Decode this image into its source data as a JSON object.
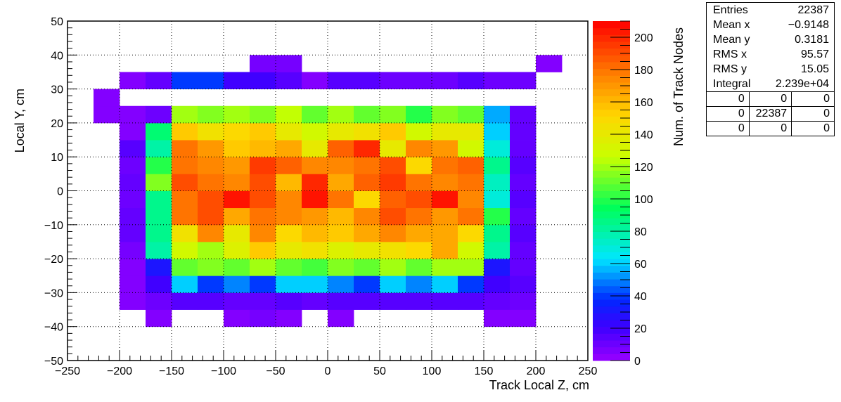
{
  "chart_data": {
    "type": "heatmap",
    "xlabel": "Track Local Z, cm",
    "ylabel": "Local Y, cm",
    "zlabel": "Num. of Track Nodes",
    "xlim": [
      -250,
      250
    ],
    "ylim": [
      -50,
      50
    ],
    "zlim": [
      0,
      210
    ],
    "x_ticks": [
      -250,
      -200,
      -150,
      -100,
      -50,
      0,
      50,
      100,
      150,
      200,
      250
    ],
    "y_ticks": [
      -50,
      -40,
      -30,
      -20,
      -10,
      0,
      10,
      20,
      30,
      40,
      50
    ],
    "z_ticks": [
      0,
      20,
      40,
      60,
      80,
      100,
      120,
      140,
      160,
      180,
      200
    ],
    "grid": true,
    "colormap": "rainbow",
    "x_bins": [
      -250,
      -225,
      -200,
      -175,
      -150,
      -125,
      -100,
      -75,
      -50,
      -25,
      0,
      25,
      50,
      75,
      100,
      125,
      150,
      175,
      200,
      225,
      250
    ],
    "y_bins": [
      -50,
      -45,
      -40,
      -35,
      -30,
      -25,
      -20,
      -15,
      -10,
      -5,
      0,
      5,
      10,
      15,
      20,
      25,
      30,
      35,
      40,
      45,
      50
    ],
    "values": [
      [
        0,
        0,
        0,
        0,
        0,
        0,
        0,
        0,
        0,
        0,
        0,
        0,
        0,
        0,
        0,
        0,
        0,
        0,
        0,
        0
      ],
      [
        0,
        0,
        0,
        0,
        0,
        0,
        0,
        0,
        0,
        0,
        0,
        0,
        0,
        0,
        0,
        0,
        0,
        0,
        0,
        0
      ],
      [
        0,
        0,
        0,
        5,
        0,
        0,
        5,
        8,
        5,
        0,
        5,
        0,
        0,
        0,
        0,
        0,
        5,
        5,
        0,
        0
      ],
      [
        0,
        0,
        5,
        10,
        15,
        15,
        12,
        12,
        15,
        12,
        15,
        15,
        15,
        15,
        15,
        15,
        12,
        10,
        0,
        0
      ],
      [
        0,
        0,
        5,
        20,
        60,
        40,
        50,
        40,
        60,
        60,
        50,
        40,
        60,
        50,
        60,
        40,
        20,
        15,
        0,
        0
      ],
      [
        0,
        0,
        5,
        30,
        110,
        115,
        110,
        120,
        110,
        105,
        115,
        110,
        120,
        110,
        120,
        120,
        30,
        12,
        0,
        0
      ],
      [
        0,
        0,
        8,
        80,
        130,
        120,
        135,
        155,
        140,
        145,
        135,
        140,
        145,
        150,
        165,
        130,
        80,
        12,
        0,
        0
      ],
      [
        0,
        0,
        12,
        85,
        145,
        175,
        140,
        175,
        150,
        160,
        155,
        165,
        175,
        165,
        165,
        150,
        85,
        15,
        0,
        0
      ],
      [
        0,
        0,
        12,
        85,
        180,
        190,
        165,
        180,
        175,
        170,
        160,
        175,
        190,
        180,
        170,
        180,
        100,
        12,
        0,
        0
      ],
      [
        0,
        0,
        10,
        85,
        180,
        190,
        205,
        190,
        175,
        205,
        180,
        150,
        185,
        190,
        205,
        175,
        70,
        15,
        0,
        0
      ],
      [
        0,
        0,
        12,
        115,
        190,
        180,
        175,
        190,
        160,
        200,
        165,
        185,
        195,
        180,
        175,
        180,
        75,
        12,
        0,
        0
      ],
      [
        0,
        0,
        10,
        100,
        180,
        175,
        170,
        195,
        185,
        175,
        175,
        180,
        190,
        150,
        180,
        185,
        85,
        15,
        0,
        0
      ],
      [
        0,
        0,
        15,
        80,
        180,
        170,
        155,
        160,
        165,
        140,
        185,
        200,
        140,
        175,
        170,
        130,
        70,
        12,
        0,
        0
      ],
      [
        0,
        0,
        5,
        90,
        155,
        145,
        150,
        155,
        140,
        130,
        140,
        145,
        155,
        130,
        140,
        140,
        60,
        12,
        0,
        0
      ],
      [
        0,
        5,
        5,
        10,
        120,
        115,
        120,
        115,
        125,
        110,
        120,
        110,
        115,
        100,
        115,
        110,
        55,
        12,
        0,
        0
      ],
      [
        0,
        5,
        0,
        0,
        0,
        0,
        0,
        0,
        0,
        0,
        0,
        0,
        0,
        0,
        0,
        0,
        0,
        0,
        0,
        0
      ],
      [
        0,
        0,
        5,
        12,
        40,
        40,
        20,
        20,
        15,
        5,
        15,
        15,
        10,
        10,
        10,
        15,
        10,
        10,
        0,
        0
      ],
      [
        0,
        0,
        0,
        0,
        0,
        0,
        0,
        8,
        8,
        0,
        0,
        0,
        0,
        0,
        0,
        0,
        0,
        0,
        5,
        0
      ],
      [
        0,
        0,
        0,
        0,
        0,
        0,
        0,
        0,
        0,
        0,
        0,
        0,
        0,
        0,
        0,
        0,
        0,
        0,
        0,
        0
      ],
      [
        0,
        0,
        0,
        0,
        0,
        0,
        0,
        0,
        0,
        0,
        0,
        0,
        0,
        0,
        0,
        0,
        0,
        0,
        0,
        0
      ]
    ]
  },
  "stats": {
    "rows": [
      {
        "label": "Entries",
        "value": "22387"
      },
      {
        "label": "Mean x",
        "value": "−0.9148"
      },
      {
        "label": "Mean y",
        "value": "0.3181"
      },
      {
        "label": "RMS x",
        "value": "95.57"
      },
      {
        "label": "RMS y",
        "value": "15.05"
      },
      {
        "label": "Integral",
        "value": "2.239e+04"
      }
    ],
    "grid": [
      [
        "0",
        "0",
        "0"
      ],
      [
        "0",
        "22387",
        "0"
      ],
      [
        "0",
        "0",
        "0"
      ]
    ]
  }
}
